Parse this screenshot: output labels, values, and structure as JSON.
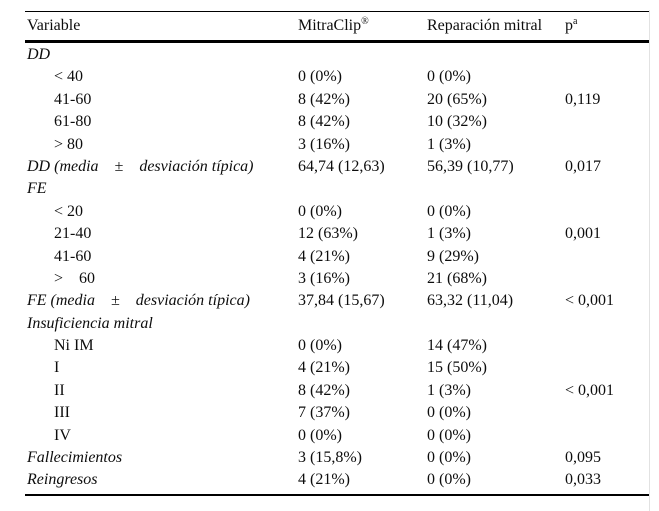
{
  "page": {
    "background": "#ffffff",
    "text_color": "#0d0d0d",
    "line_color": "#000000"
  },
  "table": {
    "headers": {
      "variable": "Variable",
      "mitraclip": "MitraClip",
      "mitraclip_sup": "®",
      "reparacion": "Reparación mitral",
      "p": "p",
      "p_sup": "a"
    },
    "rows": [
      {
        "label": "DD",
        "mitraclip": "",
        "reparacion": "",
        "p": ""
      },
      {
        "label": "< 40",
        "mitraclip": "0 (0%)",
        "reparacion": "0 (0%)",
        "p": ""
      },
      {
        "label": "41-60",
        "mitraclip": "8 (42%)",
        "reparacion": "20 (65%)",
        "p": "0,119"
      },
      {
        "label": "61-80",
        "mitraclip": "8 (42%)",
        "reparacion": "10 (32%)",
        "p": ""
      },
      {
        "label": "> 80",
        "mitraclip": "3 (16%)",
        "reparacion": "1 (3%)",
        "p": ""
      },
      {
        "label": "DD (media    ±    desviación típica)",
        "mitraclip": "64,74 (12,63)",
        "reparacion": "56,39 (10,77)",
        "p": "0,017"
      },
      {
        "label": "FE",
        "mitraclip": "",
        "reparacion": "",
        "p": ""
      },
      {
        "label": "< 20",
        "mitraclip": "0 (0%)",
        "reparacion": "0 (0%)",
        "p": ""
      },
      {
        "label": "21-40",
        "mitraclip": "12 (63%)",
        "reparacion": "1 (3%)",
        "p": "0,001"
      },
      {
        "label": "41-60",
        "mitraclip": "4 (21%)",
        "reparacion": "9 (29%)",
        "p": ""
      },
      {
        "label": ">    60",
        "mitraclip": "3 (16%)",
        "reparacion": "21 (68%)",
        "p": ""
      },
      {
        "label": "FE (media    ±    desviación típica)",
        "mitraclip": "37,84 (15,67)",
        "reparacion": "63,32 (11,04)",
        "p": "< 0,001"
      },
      {
        "label": "Insuficiencia mitral",
        "mitraclip": "",
        "reparacion": "",
        "p": ""
      },
      {
        "label": "Ni IM",
        "mitraclip": "0 (0%)",
        "reparacion": "14 (47%)",
        "p": ""
      },
      {
        "label": "I",
        "mitraclip": "4 (21%)",
        "reparacion": "15 (50%)",
        "p": ""
      },
      {
        "label": "II",
        "mitraclip": "8 (42%)",
        "reparacion": "1 (3%)",
        "p": "< 0,001"
      },
      {
        "label": "III",
        "mitraclip": "7 (37%)",
        "reparacion": "0 (0%)",
        "p": ""
      },
      {
        "label": "IV",
        "mitraclip": "0 (0%)",
        "reparacion": "0 (0%)",
        "p": ""
      },
      {
        "label": "Fallecimientos",
        "mitraclip": "3 (15,8%)",
        "reparacion": "0 (0%)",
        "p": "0,095"
      },
      {
        "label": "Reingresos",
        "mitraclip": "4 (21%)",
        "reparacion": "0 (0%)",
        "p": "0,033"
      }
    ]
  }
}
